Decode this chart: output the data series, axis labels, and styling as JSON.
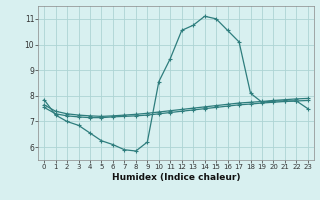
{
  "line1_x": [
    0,
    1,
    2,
    3,
    4,
    5,
    6,
    7,
    8,
    9,
    10,
    11,
    12,
    13,
    14,
    15,
    16,
    17,
    18,
    19,
    20,
    21,
    22,
    23
  ],
  "line1_y": [
    7.85,
    7.25,
    7.0,
    6.85,
    6.55,
    6.25,
    6.1,
    5.9,
    5.85,
    6.2,
    8.55,
    9.45,
    10.55,
    10.75,
    11.1,
    11.0,
    10.55,
    10.1,
    8.1,
    7.75,
    7.8,
    7.8,
    7.8,
    7.5
  ],
  "line2_x": [
    0,
    1,
    2,
    3,
    4,
    5,
    6,
    7,
    8,
    9,
    10,
    11,
    12,
    13,
    14,
    15,
    16,
    17,
    18,
    19,
    20,
    21,
    22,
    23
  ],
  "line2_y": [
    7.55,
    7.3,
    7.22,
    7.18,
    7.15,
    7.15,
    7.18,
    7.2,
    7.22,
    7.25,
    7.3,
    7.35,
    7.4,
    7.45,
    7.5,
    7.55,
    7.6,
    7.65,
    7.68,
    7.72,
    7.75,
    7.78,
    7.8,
    7.82
  ],
  "line3_x": [
    0,
    1,
    2,
    3,
    4,
    5,
    6,
    7,
    8,
    9,
    10,
    11,
    12,
    13,
    14,
    15,
    16,
    17,
    18,
    19,
    20,
    21,
    22,
    23
  ],
  "line3_y": [
    7.65,
    7.4,
    7.3,
    7.25,
    7.22,
    7.2,
    7.22,
    7.25,
    7.28,
    7.32,
    7.37,
    7.42,
    7.47,
    7.52,
    7.57,
    7.62,
    7.67,
    7.72,
    7.75,
    7.78,
    7.82,
    7.85,
    7.88,
    7.9
  ],
  "line_color": "#2e7d7d",
  "bg_color": "#d8f0f0",
  "grid_color": "#aed4d4",
  "xlabel": "Humidex (Indice chaleur)",
  "xlim": [
    -0.5,
    23.5
  ],
  "ylim": [
    5.5,
    11.5
  ],
  "yticks": [
    6,
    7,
    8,
    9,
    10,
    11
  ],
  "xticks": [
    0,
    1,
    2,
    3,
    4,
    5,
    6,
    7,
    8,
    9,
    10,
    11,
    12,
    13,
    14,
    15,
    16,
    17,
    18,
    19,
    20,
    21,
    22,
    23
  ],
  "tick_fontsize": 5.0,
  "ylabel_fontsize": 5.5,
  "xlabel_fontsize": 6.5,
  "marker_size": 2.2,
  "line_width": 0.9
}
